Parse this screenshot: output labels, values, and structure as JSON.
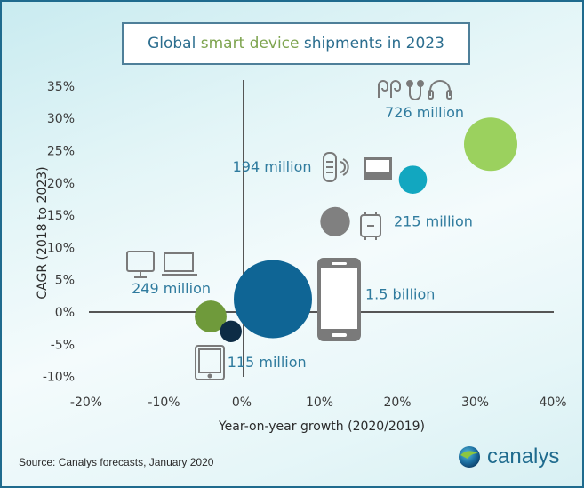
{
  "chart_data": {
    "type": "scatter",
    "subtype": "bubble",
    "title_parts": [
      {
        "text": "Global ",
        "accent": false
      },
      {
        "text": "smart device",
        "accent": true
      },
      {
        "text": " shipments in 2023",
        "accent": false
      }
    ],
    "title": "Global smart device shipments in 2023",
    "xlabel": "Year-on-year growth (2020/2019)",
    "ylabel": "CAGR (2018 to 2023)",
    "xlim": [
      -20,
      40
    ],
    "ylim": [
      -10,
      35
    ],
    "x_ticks": [
      "-20%",
      "-10%",
      "0%",
      "10%",
      "20%",
      "30%",
      "40%"
    ],
    "x_tick_values": [
      -20,
      -10,
      0,
      10,
      20,
      30,
      40
    ],
    "y_ticks": [
      "35%",
      "30%",
      "25%",
      "20%",
      "15%",
      "10%",
      "5%",
      "0%",
      "-5%",
      "-10%"
    ],
    "y_tick_values": [
      35,
      30,
      25,
      20,
      15,
      10,
      5,
      0,
      -5,
      -10
    ],
    "grid": false,
    "legend": "none",
    "series": [
      {
        "name": "Hearables",
        "x": 32,
        "y": 26,
        "shipments_label": "726 million",
        "shipments_millions": 726,
        "color": "#9bd15e",
        "icons": [
          "earbuds",
          "earphones",
          "headphones"
        ]
      },
      {
        "name": "Smart home (speakers & displays)",
        "x": 22,
        "y": 20.5,
        "shipments_label": "194 million",
        "shipments_millions": 194,
        "color": "#12a7c0",
        "icons": [
          "smart-speaker",
          "smart-display"
        ]
      },
      {
        "name": "Wearables",
        "x": 12,
        "y": 14,
        "shipments_label": "215 million",
        "shipments_millions": 215,
        "color": "#808080",
        "icons": [
          "smartwatch"
        ]
      },
      {
        "name": "Smartphones",
        "x": 4,
        "y": 2,
        "shipments_label": "1.5 billion",
        "shipments_millions": 1500,
        "color": "#0f6595",
        "icons": [
          "smartphone"
        ]
      },
      {
        "name": "PCs",
        "x": -4,
        "y": -0.7,
        "shipments_label": "249 million",
        "shipments_millions": 249,
        "color": "#6f9a3b",
        "icons": [
          "desktop",
          "laptop"
        ]
      },
      {
        "name": "Tablets",
        "x": -1.4,
        "y": -3,
        "shipments_label": "115 million",
        "shipments_millions": 115,
        "color": "#0d2c45",
        "icons": [
          "tablet"
        ]
      }
    ]
  },
  "footer": {
    "source": "Source:  Canalys forecasts, January 2020",
    "logo_text": "canalys"
  },
  "colors": {
    "title_text": "#2c6e8f",
    "title_accent": "#7ea44f",
    "label_text": "#2f7b9e",
    "frame": "#1f6b8e"
  }
}
